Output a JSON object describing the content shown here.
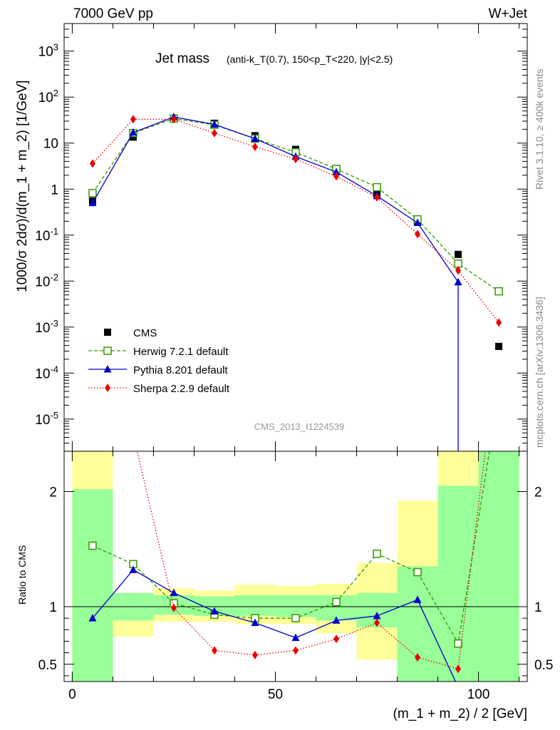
{
  "header": {
    "energy": "7000 GeV pp",
    "process": "W+Jet"
  },
  "side_labels": {
    "rivet": "Rivet 3.1.10, ≥ 400k events",
    "mcplots": "mcplots.cern.ch [arXiv:1306.3436]"
  },
  "chart_data": {
    "type": "line",
    "title_main": "Jet mass",
    "title_sub": "(anti-k_T(0.7), 150<p_T<220, |y|<2.5)",
    "analysis_label": "CMS_2013_I1224539",
    "xlabel": "(m_1 + m_2) / 2 [GeV]",
    "ylabel_main": "1000/σ 2dσ)/d(m_1 + m_2) [1/GeV]",
    "ylabel_ratio": "Ratio to CMS",
    "xlim": [
      -2,
      112
    ],
    "ylim_main_log10": [
      -5.7,
      3.6
    ],
    "ylim_ratio": [
      0.35,
      2.35
    ],
    "x_ticks": [
      0,
      50,
      100
    ],
    "y_ticks_main": [
      "10^3",
      "10^2",
      "10",
      "1",
      "10^-1",
      "10^-2",
      "10^-3",
      "10^-4",
      "10^-5"
    ],
    "y_ticks_ratio": [
      "0.5",
      "1",
      "2"
    ],
    "bin_edges": [
      0,
      10,
      20,
      30,
      40,
      50,
      60,
      70,
      80,
      90,
      100,
      110
    ],
    "x": [
      5,
      15,
      25,
      35,
      45,
      55,
      65,
      75,
      85,
      95,
      105
    ],
    "legend": {
      "position": "bottom-left"
    },
    "series": [
      {
        "name": "CMS",
        "color": "#000000",
        "marker": "square-filled",
        "line": "none",
        "values": [
          0.55,
          13.5,
          34,
          27,
          14.5,
          7.3,
          2.7,
          0.78,
          0.19,
          0.038,
          0.00038
        ]
      },
      {
        "name": "Herwig 7.2.1 default",
        "color": "#339900",
        "marker": "square-open",
        "line": "dashed",
        "values": [
          0.82,
          16.5,
          34,
          25,
          12.5,
          6.3,
          2.75,
          1.1,
          0.22,
          0.024,
          0.006
        ],
        "ratio": [
          1.53,
          1.37,
          1.03,
          0.93,
          0.9,
          0.9,
          1.04,
          1.46,
          1.3,
          0.68,
          null
        ]
      },
      {
        "name": "Pythia 8.201 default",
        "color": "#0000cc",
        "marker": "triangle",
        "line": "solid",
        "values": [
          0.5,
          17,
          37,
          25.5,
          12.5,
          5.1,
          2.35,
          0.71,
          0.185,
          0.0095,
          null
        ],
        "ratio": [
          0.9,
          1.32,
          1.12,
          0.96,
          0.86,
          0.73,
          0.88,
          0.92,
          1.06,
          0.3,
          null
        ]
      },
      {
        "name": "Sherpa 2.2.9 default",
        "color": "#ee0000",
        "marker": "diamond",
        "line": "dotted",
        "values": [
          3.6,
          33,
          33,
          16.5,
          8.3,
          4.5,
          1.9,
          0.66,
          0.105,
          0.017,
          0.00125
        ],
        "ratio": [
          6.5,
          2.5,
          0.99,
          0.62,
          0.58,
          0.62,
          0.72,
          0.86,
          0.56,
          0.46,
          3.3
        ]
      }
    ],
    "ratio_bands": {
      "inner_color": "#99ff99",
      "outer_color": "#ffff99",
      "inner": [
        [
          0.35,
          2.02
        ],
        [
          0.88,
          1.12
        ],
        [
          0.93,
          1.1
        ],
        [
          0.92,
          1.09
        ],
        [
          0.92,
          1.1
        ],
        [
          0.91,
          1.1
        ],
        [
          0.88,
          1.1
        ],
        [
          0.82,
          1.12
        ],
        [
          0.35,
          1.35
        ],
        [
          0.35,
          2.05
        ],
        [
          0.35,
          2.4
        ]
      ],
      "outer": [
        [
          0.35,
          2.4
        ],
        [
          0.74,
          1.12
        ],
        [
          0.87,
          1.16
        ],
        [
          0.87,
          1.14
        ],
        [
          0.85,
          1.19
        ],
        [
          0.85,
          1.18
        ],
        [
          0.77,
          1.2
        ],
        [
          0.54,
          1.38
        ],
        [
          0.35,
          1.92
        ],
        [
          0.35,
          2.4
        ],
        [
          0.35,
          2.4
        ]
      ]
    }
  }
}
